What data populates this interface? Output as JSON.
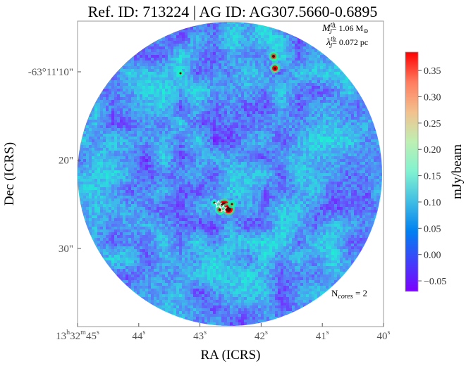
{
  "chart_data": {
    "type": "heatmap",
    "title": "Ref. ID: 713224 | AG ID: AG307.5660-0.6895",
    "xlabel": "RA (ICRS)",
    "ylabel": "Dec (ICRS)",
    "x_ticks": [
      {
        "label_main": "13",
        "sup1": "h",
        "mid": "32",
        "sup2": "m",
        "tail": "45",
        "sup3": "s",
        "value_sec": 45
      },
      {
        "label_main": "44",
        "sup3": "s",
        "value_sec": 44
      },
      {
        "label_main": "43",
        "sup3": "s",
        "value_sec": 43
      },
      {
        "label_main": "42",
        "sup3": "s",
        "value_sec": 42
      },
      {
        "label_main": "41",
        "sup3": "s",
        "value_sec": 41
      },
      {
        "label_main": "40",
        "sup3": "s",
        "value_sec": 40
      }
    ],
    "y_ticks": [
      {
        "label": "-63°11'10\"",
        "value_arcsec": 10
      },
      {
        "label": "20\"",
        "value_arcsec": 20
      },
      {
        "label": "30\"",
        "value_arcsec": 30
      }
    ],
    "colorbar": {
      "label": "mJy/beam",
      "colormap": "rainbow",
      "vmin": -0.07,
      "vmax": 0.385,
      "ticks": [
        "0.35",
        "0.30",
        "0.25",
        "0.20",
        "0.15",
        "0.10",
        "0.05",
        "0.00",
        "−0.05"
      ],
      "tick_values": [
        0.35,
        0.3,
        0.25,
        0.2,
        0.15,
        0.1,
        0.05,
        0.0,
        -0.05
      ]
    },
    "annotations": {
      "mass_symbol": "M",
      "mass_sub": "J",
      "mass_sup": "th",
      "mass_value": "= 1.06 M",
      "mass_unit_symbol": "⊙",
      "length_symbol": "λ",
      "length_sub": "J",
      "length_sup": "th",
      "length_value": "= 0.072 pc",
      "ncores_prefix": "N",
      "ncores_sub": "cores",
      "ncores_value": " = 2"
    },
    "cores": [
      {
        "ra_sec": 42.62,
        "dec_arcsec": 25.5
      },
      {
        "ra_sec": 42.7,
        "dec_arcsec": 25.0
      }
    ]
  }
}
